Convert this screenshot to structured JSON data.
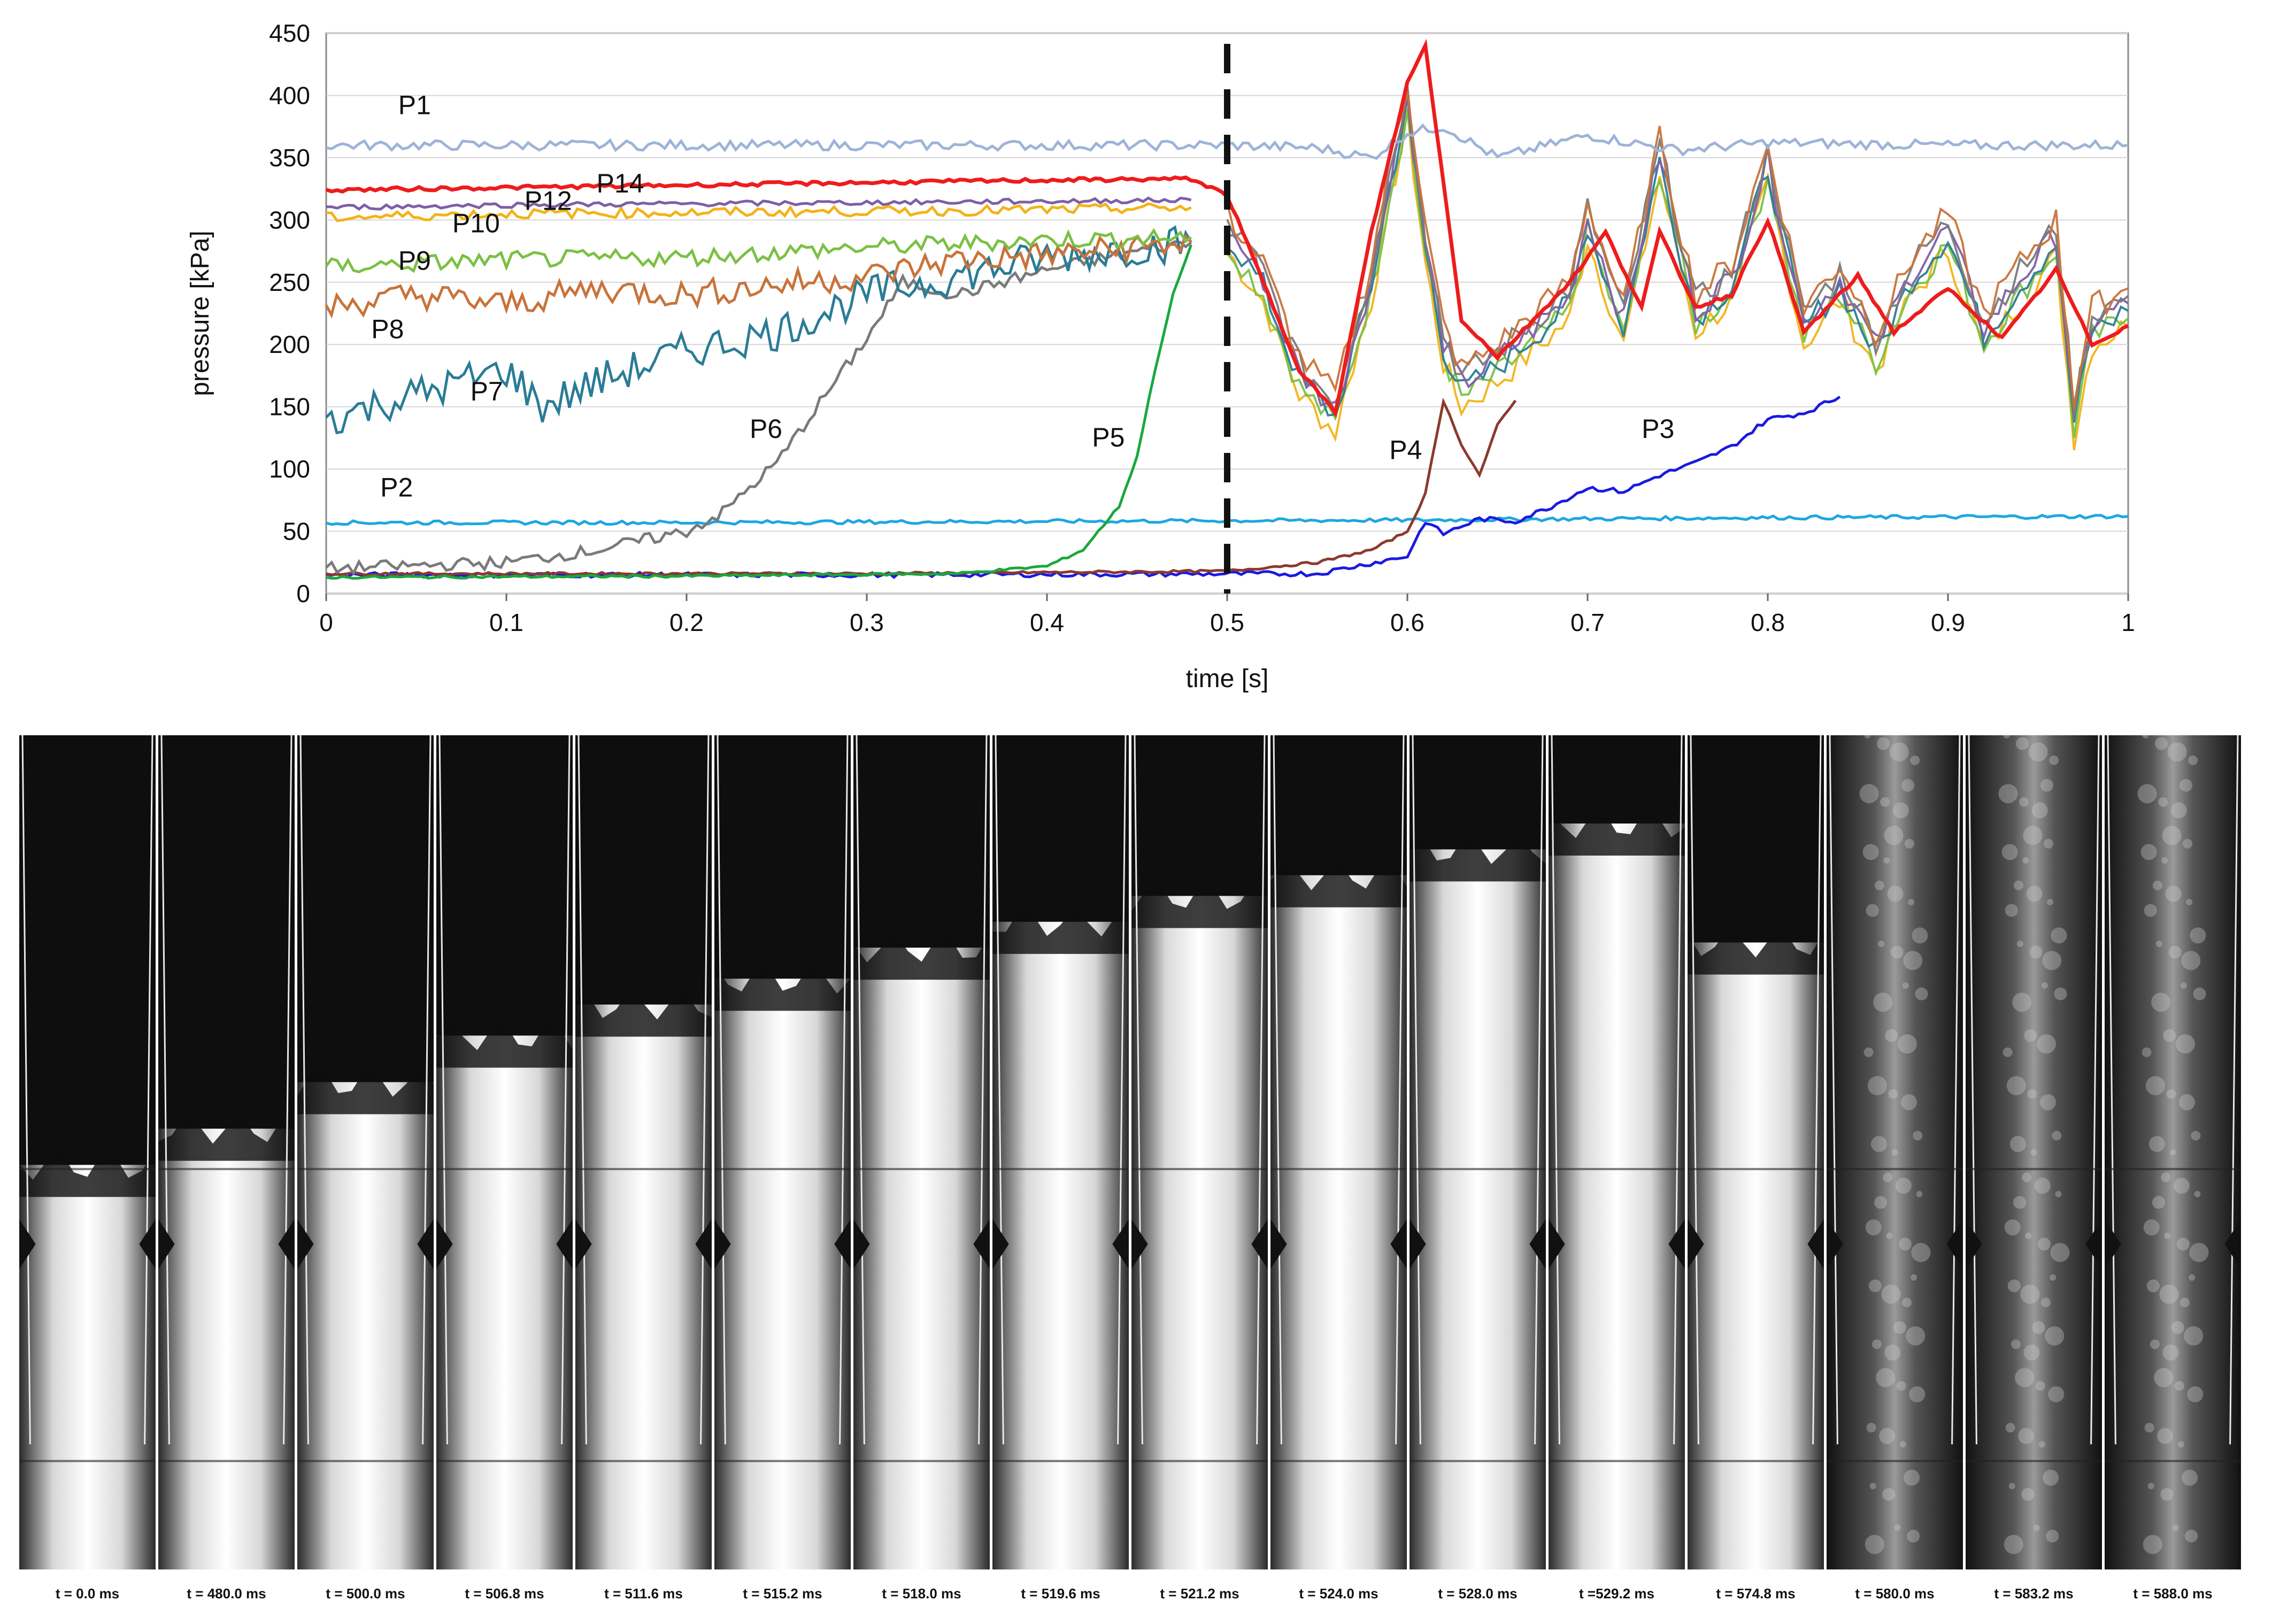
{
  "chart_data": {
    "type": "line",
    "title": "",
    "xlabel": "time [s]",
    "ylabel": "pressure [kPa]",
    "xlim": [
      0,
      1
    ],
    "ylim": [
      0,
      450
    ],
    "xticks": [
      "0",
      "0.1",
      "0.2",
      "0.3",
      "0.4",
      "0.5",
      "0.6",
      "0.7",
      "0.8",
      "0.9",
      "1"
    ],
    "yticks": [
      "0",
      "50",
      "100",
      "150",
      "200",
      "250",
      "300",
      "350",
      "400",
      "450"
    ],
    "grid": "horizontal",
    "annotations": [
      {
        "type": "vertical-dashed-line",
        "x": 0.5
      }
    ],
    "series": [
      {
        "name": "P1",
        "color": "#9db3d8",
        "label_at": [
          0.04,
          385
        ],
        "x": [
          0,
          0.1,
          0.2,
          0.3,
          0.4,
          0.5,
          0.55,
          0.58,
          0.6,
          0.62,
          0.65,
          0.7,
          0.75,
          0.8,
          0.9,
          1.0
        ],
        "y": [
          360,
          360,
          360,
          360,
          360,
          360,
          358,
          350,
          370,
          375,
          350,
          368,
          356,
          362,
          360,
          360
        ]
      },
      {
        "name": "P2",
        "color": "#1ea7e0",
        "label_at": [
          0.03,
          78
        ],
        "x": [
          0,
          0.2,
          0.4,
          0.6,
          0.8,
          1.0
        ],
        "y": [
          57,
          57,
          58,
          59,
          61,
          62
        ]
      },
      {
        "name": "P3",
        "color": "#1a1ae0",
        "label_at": [
          0.73,
          125
        ],
        "x": [
          0,
          0.3,
          0.55,
          0.6,
          0.61,
          0.62,
          0.64,
          0.66,
          0.68,
          0.7,
          0.72,
          0.74,
          0.76,
          0.78,
          0.8,
          0.82,
          0.84
        ],
        "y": [
          15,
          15,
          16,
          30,
          58,
          48,
          60,
          58,
          70,
          85,
          82,
          95,
          105,
          118,
          140,
          145,
          158
        ]
      },
      {
        "name": "P4",
        "color": "#8b3a2e",
        "label_at": [
          0.59,
          108
        ],
        "x": [
          0,
          0.3,
          0.5,
          0.55,
          0.58,
          0.6,
          0.61,
          0.62,
          0.63,
          0.64,
          0.65,
          0.66
        ],
        "y": [
          16,
          16,
          18,
          25,
          35,
          50,
          80,
          155,
          120,
          95,
          135,
          155
        ]
      },
      {
        "name": "P5",
        "color": "#1aa83c",
        "label_at": [
          0.425,
          118
        ],
        "x": [
          0,
          0.2,
          0.35,
          0.4,
          0.42,
          0.44,
          0.45,
          0.46,
          0.47,
          0.48
        ],
        "y": [
          13,
          14,
          16,
          22,
          35,
          70,
          110,
          180,
          240,
          280
        ]
      },
      {
        "name": "P6",
        "color": "#7a7a7a",
        "label_at": [
          0.235,
          125
        ],
        "x": [
          0,
          0.1,
          0.15,
          0.2,
          0.22,
          0.25,
          0.28,
          0.3,
          0.32,
          0.35,
          0.4,
          0.45,
          0.48
        ],
        "y": [
          20,
          25,
          35,
          50,
          65,
          105,
          165,
          205,
          250,
          240,
          260,
          275,
          282
        ]
      },
      {
        "name": "P7",
        "color": "#2a7c96",
        "label_at": [
          0.08,
          155
        ],
        "x": [
          0,
          0.05,
          0.1,
          0.12,
          0.15,
          0.2,
          0.25,
          0.3,
          0.35,
          0.4,
          0.45,
          0.48
        ],
        "y": [
          140,
          160,
          180,
          150,
          170,
          195,
          210,
          240,
          255,
          270,
          278,
          282
        ]
      },
      {
        "name": "P8",
        "color": "#c8733a",
        "label_at": [
          0.025,
          205
        ],
        "x": [
          0,
          0.05,
          0.1,
          0.15,
          0.2,
          0.25,
          0.3,
          0.35,
          0.4,
          0.45,
          0.48
        ],
        "y": [
          230,
          240,
          232,
          245,
          240,
          248,
          255,
          268,
          272,
          278,
          282
        ]
      },
      {
        "name": "P9",
        "color": "#7ac143",
        "label_at": [
          0.04,
          260
        ],
        "x": [
          0,
          0.1,
          0.2,
          0.3,
          0.4,
          0.48
        ],
        "y": [
          262,
          268,
          270,
          278,
          284,
          286
        ]
      },
      {
        "name": "P10",
        "color": "#f2b318",
        "label_at": [
          0.07,
          290
        ],
        "x": [
          0,
          0.1,
          0.2,
          0.3,
          0.4,
          0.48
        ],
        "y": [
          302,
          305,
          306,
          307,
          308,
          310
        ]
      },
      {
        "name": "P12",
        "color": "#7e5ea8",
        "label_at": [
          0.11,
          308
        ],
        "x": [
          0,
          0.1,
          0.2,
          0.3,
          0.4,
          0.48
        ],
        "y": [
          310,
          312,
          313,
          314,
          315,
          316
        ]
      },
      {
        "name": "P14",
        "color": "#ee1c1c",
        "label_at": [
          0.15,
          322
        ],
        "x": [
          0,
          0.1,
          0.2,
          0.3,
          0.4,
          0.48,
          0.5,
          0.52,
          0.54,
          0.56,
          0.58,
          0.6,
          0.61,
          0.63,
          0.65,
          0.67,
          0.69,
          0.71,
          0.73,
          0.74,
          0.76,
          0.78,
          0.8,
          0.82,
          0.85,
          0.87,
          0.9,
          0.93,
          0.96,
          0.98,
          1.0
        ],
        "y": [
          324,
          326,
          328,
          330,
          332,
          333,
          320,
          250,
          180,
          145,
          290,
          410,
          440,
          220,
          190,
          220,
          250,
          290,
          230,
          290,
          230,
          240,
          300,
          210,
          255,
          210,
          245,
          205,
          260,
          200,
          215
        ]
      }
    ],
    "post_ignition_mixed": {
      "colors": [
        "#f2b318",
        "#7ac143",
        "#2a7c96",
        "#7e5ea8",
        "#7a7a7a",
        "#c8733a"
      ],
      "x": [
        0.5,
        0.52,
        0.54,
        0.56,
        0.57,
        0.58,
        0.59,
        0.6,
        0.61,
        0.62,
        0.63,
        0.65,
        0.67,
        0.69,
        0.7,
        0.72,
        0.74,
        0.76,
        0.78,
        0.8,
        0.82,
        0.84,
        0.86,
        0.88,
        0.9,
        0.92,
        0.94,
        0.96,
        0.97,
        0.98,
        1.0
      ],
      "y": [
        290,
        250,
        175,
        145,
        200,
        250,
        330,
        395,
        280,
        200,
        165,
        185,
        210,
        235,
        300,
        215,
        350,
        225,
        250,
        345,
        215,
        250,
        195,
        255,
        290,
        210,
        250,
        285,
        140,
        215,
        230
      ]
    }
  },
  "frames": {
    "labels": [
      "t = 0.0 ms",
      "t = 480.0 ms",
      "t = 500.0 ms",
      "t = 506.8 ms",
      "t = 511.6 ms",
      "t = 515.2 ms",
      "t = 518.0 ms",
      "t = 519.6 ms",
      "t = 521.2 ms",
      "t = 524.0 ms",
      "t = 528.0 ms",
      "t =529.2 ms",
      "t = 574.8 ms",
      "t = 580.0 ms",
      "t = 583.2 ms",
      "t = 588.0 ms"
    ],
    "flame_front_fraction": [
      0.25,
      0.32,
      0.41,
      0.5,
      0.56,
      0.61,
      0.67,
      0.72,
      0.77,
      0.81,
      0.86,
      0.91,
      0.68,
      0.0,
      0.0,
      0.0
    ]
  }
}
